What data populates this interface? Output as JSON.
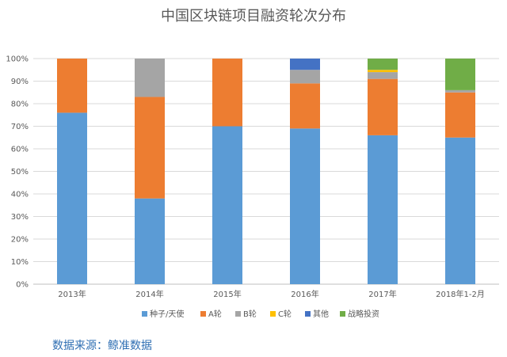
{
  "chart_data": {
    "type": "bar",
    "stacked": true,
    "title": "中国区块链项目融资轮次分布",
    "categories": [
      "2013年",
      "2014年",
      "2015年",
      "2016年",
      "2017年",
      "2018年1-2月"
    ],
    "ylim": [
      0,
      100
    ],
    "yticks": [
      "0%",
      "10%",
      "20%",
      "30%",
      "40%",
      "50%",
      "60%",
      "70%",
      "80%",
      "90%",
      "100%"
    ],
    "grid": true,
    "legend_position": "bottom",
    "series": [
      {
        "name": "种子/天使",
        "color": "#5b9bd5",
        "values": [
          76,
          38,
          70,
          69,
          66,
          65
        ]
      },
      {
        "name": "A轮",
        "color": "#ed7d31",
        "values": [
          24,
          45,
          30,
          20,
          25,
          20
        ]
      },
      {
        "name": "B轮",
        "color": "#a5a5a5",
        "values": [
          0,
          17,
          0,
          6,
          3,
          1
        ]
      },
      {
        "name": "C轮",
        "color": "#ffc000",
        "values": [
          0,
          0,
          0,
          0,
          1,
          0
        ]
      },
      {
        "name": "其他",
        "color": "#4472c4",
        "values": [
          0,
          0,
          0,
          5,
          0,
          0
        ]
      },
      {
        "name": "战略投资",
        "color": "#70ad47",
        "values": [
          0,
          0,
          0,
          0,
          5,
          14
        ]
      }
    ]
  },
  "source_note": "数据来源：鲸准数据"
}
